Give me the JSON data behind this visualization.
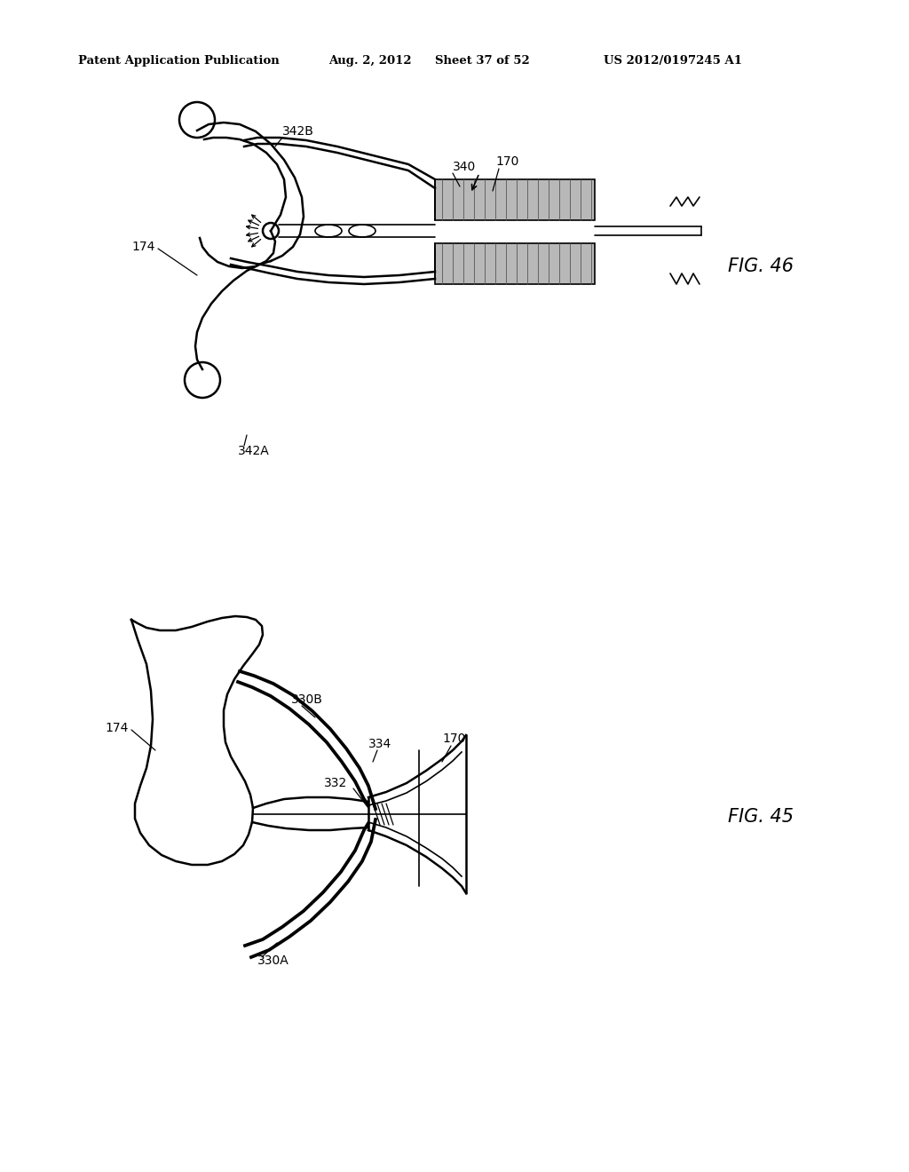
{
  "bg_color": "#ffffff",
  "line_color": "#000000",
  "header_text": "Patent Application Publication",
  "header_date": "Aug. 2, 2012",
  "header_sheet": "Sheet 37 of 52",
  "header_patent": "US 2012/0197245 A1",
  "fig46_label": "FIG. 46",
  "fig45_label": "FIG. 45"
}
